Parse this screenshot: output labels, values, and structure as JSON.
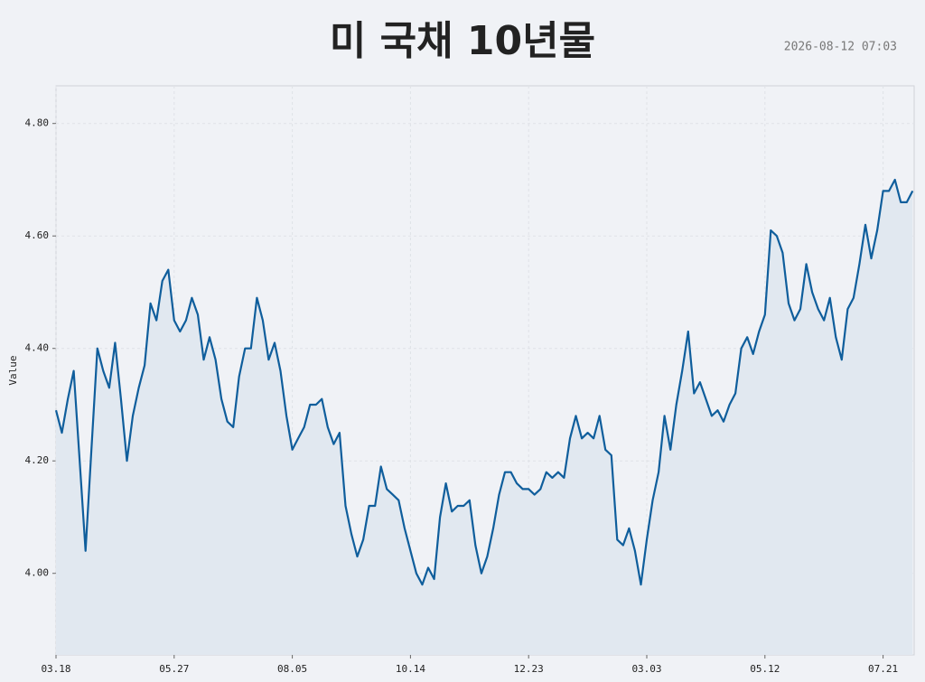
{
  "chart_data": {
    "type": "line",
    "title": "미 국채 10년물",
    "timestamp": "2026-08-12 07:03",
    "y_label": "Value",
    "color": "#0f5e9c",
    "area_color": "#e1e8f0",
    "grid": true,
    "categories": [
      "03.18",
      null,
      null,
      null,
      null,
      null,
      null,
      null,
      null,
      null,
      null,
      null,
      null,
      null,
      null,
      null,
      null,
      null,
      null,
      null,
      "05.27",
      null,
      null,
      null,
      null,
      null,
      null,
      null,
      null,
      null,
      null,
      null,
      null,
      null,
      null,
      null,
      null,
      null,
      null,
      null,
      "08.05",
      null,
      null,
      null,
      null,
      null,
      null,
      null,
      null,
      null,
      null,
      null,
      null,
      null,
      null,
      null,
      null,
      null,
      null,
      null,
      "10.14",
      null,
      null,
      null,
      null,
      null,
      null,
      null,
      null,
      null,
      null,
      null,
      null,
      null,
      null,
      null,
      null,
      null,
      null,
      null,
      "12.23",
      null,
      null,
      null,
      null,
      null,
      null,
      null,
      null,
      null,
      null,
      null,
      null,
      null,
      null,
      null,
      null,
      null,
      null,
      null,
      "03.03",
      null,
      null,
      null,
      null,
      null,
      null,
      null,
      null,
      null,
      null,
      null,
      null,
      null,
      null,
      null,
      null,
      null,
      null,
      null,
      "05.12",
      null,
      null,
      null,
      null,
      null,
      null,
      null,
      null,
      null,
      null,
      null,
      null,
      null,
      null,
      null,
      null,
      null,
      null,
      null,
      "07.21",
      null,
      null,
      null,
      null,
      null
    ],
    "values": [
      4.29,
      4.25,
      4.31,
      4.36,
      4.2,
      4.04,
      4.22,
      4.4,
      4.36,
      4.33,
      4.41,
      4.31,
      4.2,
      4.28,
      4.33,
      4.37,
      4.48,
      4.45,
      4.52,
      4.54,
      4.45,
      4.43,
      4.45,
      4.49,
      4.46,
      4.38,
      4.42,
      4.38,
      4.31,
      4.27,
      4.26,
      4.35,
      4.4,
      4.4,
      4.49,
      4.45,
      4.38,
      4.41,
      4.36,
      4.28,
      4.22,
      4.24,
      4.26,
      4.3,
      4.3,
      4.31,
      4.26,
      4.23,
      4.25,
      4.12,
      4.07,
      4.03,
      4.06,
      4.12,
      4.12,
      4.19,
      4.15,
      4.14,
      4.13,
      4.08,
      4.04,
      4.0,
      3.98,
      4.01,
      3.99,
      4.1,
      4.16,
      4.11,
      4.12,
      4.12,
      4.13,
      4.05,
      4.0,
      4.03,
      4.08,
      4.14,
      4.18,
      4.18,
      4.16,
      4.15,
      4.15,
      4.14,
      4.15,
      4.18,
      4.17,
      4.18,
      4.17,
      4.24,
      4.28,
      4.24,
      4.25,
      4.24,
      4.28,
      4.22,
      4.21,
      4.06,
      4.05,
      4.08,
      4.04,
      3.98,
      4.06,
      4.13,
      4.18,
      4.28,
      4.22,
      4.3,
      4.36,
      4.43,
      4.32,
      4.34,
      4.31,
      4.28,
      4.29,
      4.27,
      4.3,
      4.32,
      4.4,
      4.42,
      4.39,
      4.43,
      4.46,
      4.61,
      4.6,
      4.57,
      4.48,
      4.45,
      4.47,
      4.55,
      4.5,
      4.47,
      4.45,
      4.49,
      4.42,
      4.38,
      4.47,
      4.49,
      4.55,
      4.62,
      4.56,
      4.61,
      4.68,
      4.68,
      4.7,
      4.66,
      4.66,
      4.68
    ],
    "ylim": [
      3.855,
      4.867
    ],
    "yticks": [
      {
        "value": 4.0,
        "label": "4.00"
      },
      {
        "value": 4.2,
        "label": "4.20"
      },
      {
        "value": 4.4,
        "label": "4.40"
      },
      {
        "value": 4.6,
        "label": "4.60"
      },
      {
        "value": 4.8,
        "label": "4.80"
      }
    ]
  }
}
